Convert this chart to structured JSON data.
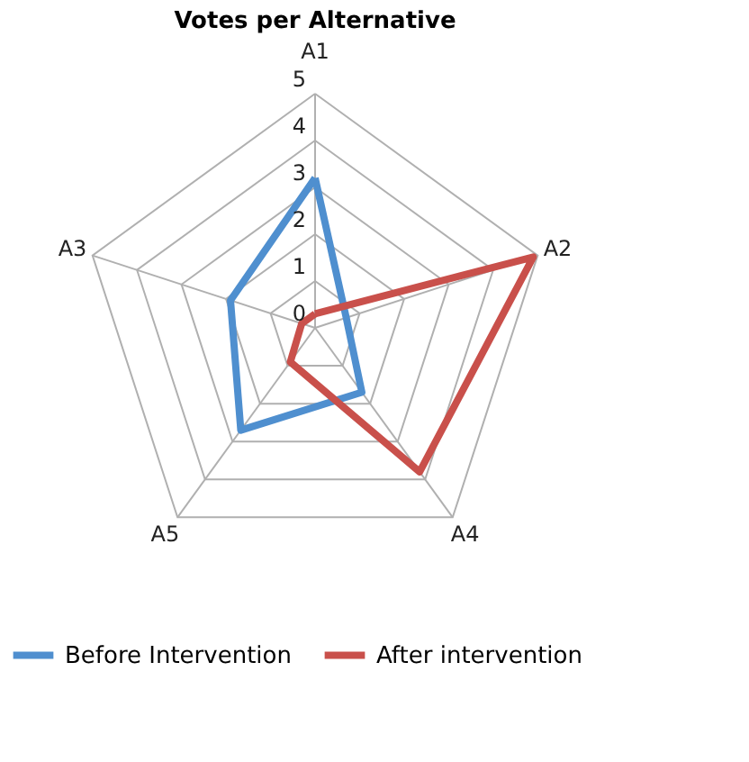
{
  "chart_data": {
    "type": "radar",
    "title": "Votes per Alternative",
    "categories": [
      "A1",
      "A2",
      "A4",
      "A5",
      "A3"
    ],
    "series": [
      {
        "name": "Before Intervention",
        "color": "#4f8fcf",
        "values": [
          3.2,
          0.7,
          1.7,
          2.7,
          1.9
        ]
      },
      {
        "name": "After intervention",
        "color": "#c9504b",
        "values": [
          0.3,
          4.9,
          3.8,
          0.9,
          0.3
        ]
      }
    ],
    "ylim": [
      0,
      5
    ],
    "yticks": [
      0,
      1,
      2,
      3,
      4,
      5
    ],
    "grid": true,
    "legend": "bottom"
  }
}
